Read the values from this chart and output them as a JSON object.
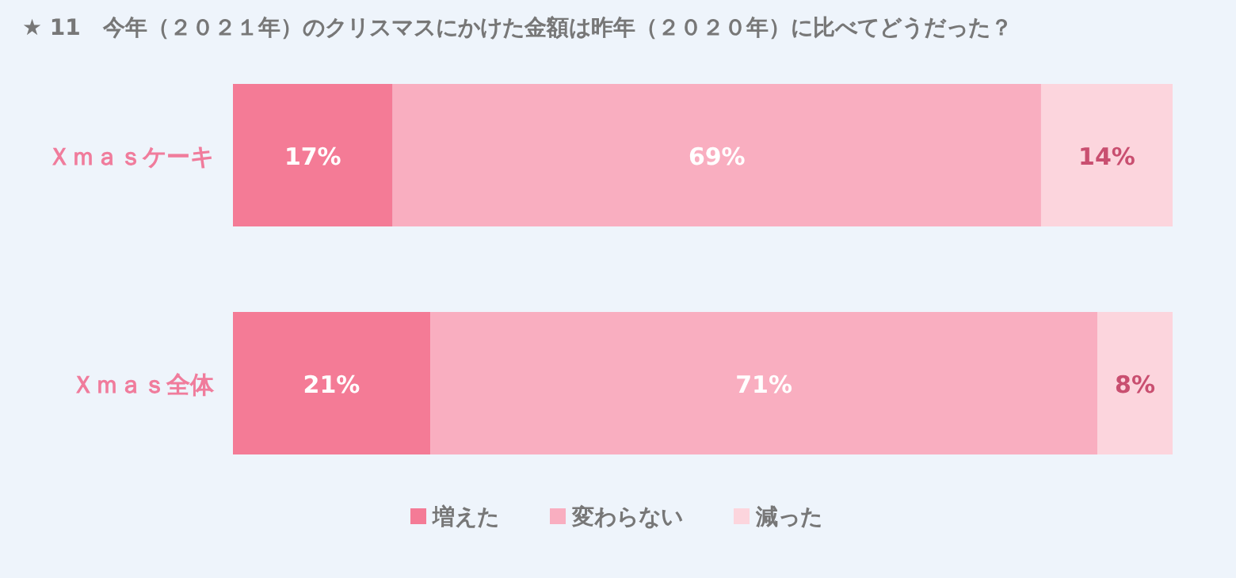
{
  "chart_data": {
    "type": "bar",
    "orientation": "horizontal",
    "stacked": true,
    "title": "★ 11　今年（２０２１年）のクリスマスにかけた金額は昨年（２０２０年）に比べてどうだった？",
    "categories": [
      "Ｘｍａｓケーキ",
      "Ｘｍａｓ全体"
    ],
    "series": [
      {
        "name": "増えた",
        "color": "#f47b96",
        "values": [
          17,
          21
        ],
        "value_labels": [
          "17%",
          "21%"
        ]
      },
      {
        "name": "変わらない",
        "color": "#f9aec0",
        "values": [
          69,
          71
        ],
        "value_labels": [
          "69%",
          "71%"
        ]
      },
      {
        "name": "減った",
        "color": "#fcd5dd",
        "values": [
          14,
          8
        ],
        "value_labels": [
          "14%",
          "8%"
        ]
      }
    ],
    "legend": "bottom"
  }
}
